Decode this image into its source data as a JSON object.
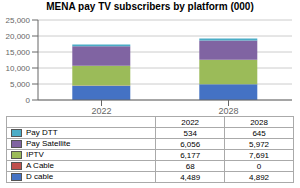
{
  "chart_data": {
    "type": "bar",
    "title": "MENA pay TV subscribers by platform (000)",
    "categories": [
      "2022",
      "2028"
    ],
    "series": [
      {
        "name": "D cable",
        "color": "#4472C4",
        "values": [
          4489,
          4892
        ],
        "value_labels": [
          "4,489",
          "4,892"
        ]
      },
      {
        "name": "A Cable",
        "color": "#C0504D",
        "values": [
          68,
          0
        ],
        "value_labels": [
          "68",
          "0"
        ]
      },
      {
        "name": "IPTV",
        "color": "#9BBB59",
        "values": [
          6177,
          7691
        ],
        "value_labels": [
          "6,177",
          "7,691"
        ]
      },
      {
        "name": "Pay Satellite",
        "color": "#8064A2",
        "values": [
          6056,
          5972
        ],
        "value_labels": [
          "6,056",
          "5,972"
        ]
      },
      {
        "name": "Pay DTT",
        "color": "#4BACC6",
        "values": [
          534,
          645
        ],
        "value_labels": [
          "534",
          "645"
        ]
      }
    ],
    "stacked": true,
    "ylim": [
      0,
      25000
    ],
    "yticks": [
      0,
      {
        "value": 5000,
        "label": "5,000"
      },
      {
        "value": 10000,
        "label": "10,000"
      },
      {
        "value": 15000,
        "label": "15,000"
      },
      {
        "value": 20000,
        "label": "20,000"
      },
      {
        "value": 25000,
        "label": "25,000"
      }
    ],
    "grid": true
  }
}
